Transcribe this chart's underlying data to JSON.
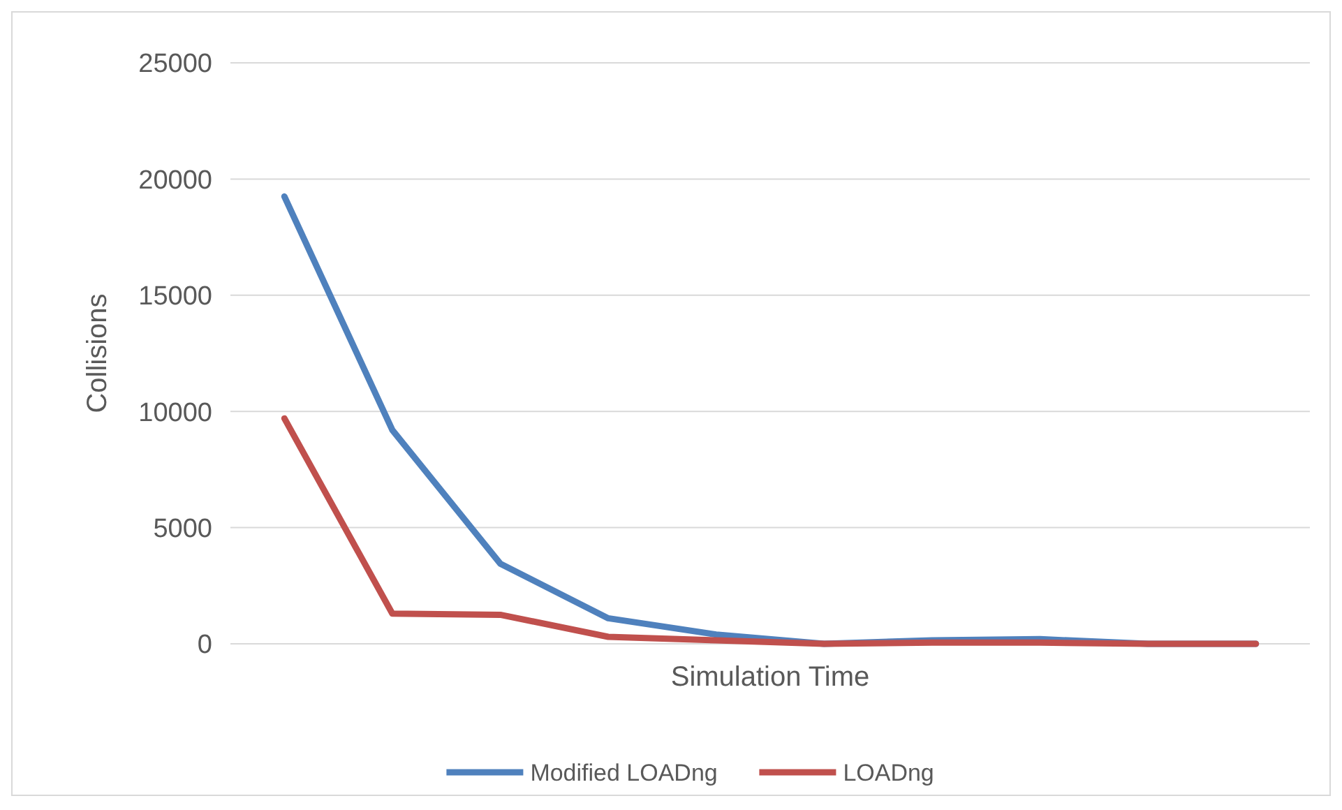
{
  "chart_data": {
    "type": "line",
    "xlabel": "Simulation Time",
    "ylabel": "Collisions",
    "categories": [
      null,
      null,
      null,
      null,
      null,
      null,
      null,
      null,
      null,
      null
    ],
    "series": [
      {
        "name": "Modified LOADng",
        "color": "#4f81bd",
        "values": [
          19250,
          9200,
          3450,
          1100,
          400,
          0,
          150,
          200,
          0,
          0
        ]
      },
      {
        "name": "LOADng",
        "color": "#c0504d",
        "values": [
          9700,
          1300,
          1250,
          300,
          150,
          0,
          50,
          50,
          0,
          0
        ]
      }
    ],
    "ylim": [
      0,
      25000
    ],
    "yticks": [
      0,
      5000,
      10000,
      15000,
      20000,
      25000
    ],
    "grid": "y",
    "legend": "bottom",
    "marker": "none",
    "line_style": "solid"
  }
}
